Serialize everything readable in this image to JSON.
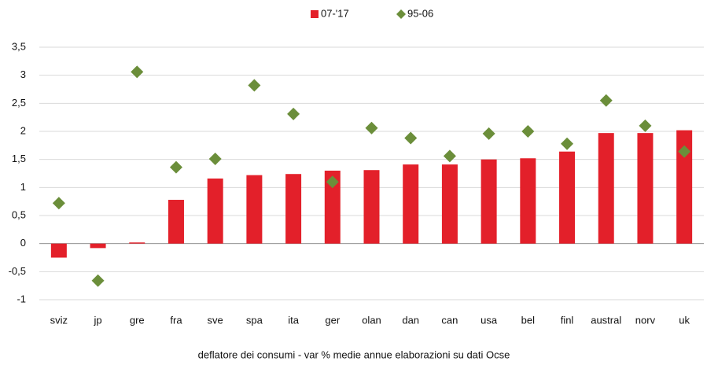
{
  "chart_data": {
    "type": "bar",
    "caption": "deflatore dei consumi - var % medie annue elaborazioni su dati Ocse",
    "categories": [
      "sviz",
      "jp",
      "gre",
      "fra",
      "sve",
      "spa",
      "ita",
      "ger",
      "olan",
      "dan",
      "can",
      "usa",
      "bel",
      "finl",
      "austral",
      "norv",
      "uk"
    ],
    "series": [
      {
        "name": "07-'17",
        "type": "bar",
        "color": "#e3202a",
        "values": [
          -0.25,
          -0.08,
          0.02,
          0.78,
          1.16,
          1.22,
          1.24,
          1.3,
          1.31,
          1.41,
          1.41,
          1.5,
          1.52,
          1.64,
          1.97,
          1.97,
          2.02
        ]
      },
      {
        "name": "95-06",
        "type": "scatter",
        "color": "#6b8e3a",
        "values": [
          0.72,
          -0.66,
          3.06,
          1.36,
          1.51,
          2.82,
          2.31,
          1.1,
          2.06,
          1.88,
          1.56,
          1.96,
          2.0,
          1.78,
          2.55,
          2.1,
          1.64
        ]
      }
    ],
    "ylim": [
      -1,
      3.5
    ],
    "yticks": [
      -1,
      {
        "value": -0.5,
        "label": "-0,5"
      },
      0,
      {
        "value": 0.5,
        "label": "0,5"
      },
      1,
      {
        "value": 1.5,
        "label": "1,5"
      },
      2,
      {
        "value": 2.5,
        "label": "2,5"
      },
      3,
      {
        "value": 3.5,
        "label": "3,5"
      }
    ],
    "grid": true,
    "legend": "top"
  }
}
